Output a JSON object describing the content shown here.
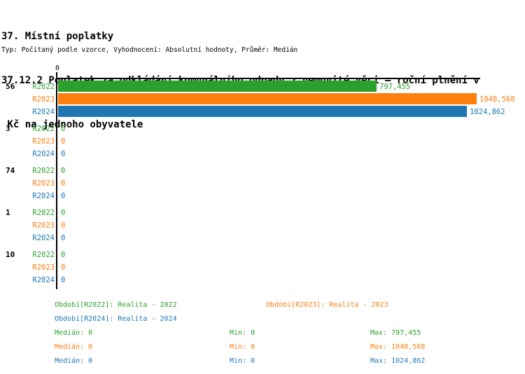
{
  "title": {
    "line1": "37. Místní poplatky",
    "line2": "37.12.2 Poplatek za odkládání komunálního odpadu z nemovité věci – roční plnění v",
    "line3": " Kč na jednoho obyvatele"
  },
  "subtitle": "Typ: Počítaný podle vzorce, Vyhodnocení: Absolutní hodnoty, Průměr: Medián",
  "chart_data": {
    "type": "bar",
    "orientation": "horizontal",
    "x_axis_tick": "0",
    "xlim": [
      0,
      1060
    ],
    "grid": false,
    "legend_position": "bottom",
    "categories": [
      "56",
      "3",
      "74",
      "1",
      "10"
    ],
    "series": [
      {
        "name": "R2022",
        "color": "#2ca02c",
        "values": [
          797.455,
          0,
          0,
          0,
          0
        ],
        "value_labels": [
          "797,455",
          "0",
          "0",
          "0",
          "0"
        ]
      },
      {
        "name": "R2023",
        "color": "#ff7f0e",
        "values": [
          1048.568,
          0,
          0,
          0,
          0
        ],
        "value_labels": [
          "1048,568",
          "0",
          "0",
          "0",
          "0"
        ]
      },
      {
        "name": "R2024",
        "color": "#1f77b4",
        "values": [
          1024.862,
          0,
          0,
          0,
          0
        ],
        "value_labels": [
          "1024,862",
          "0",
          "0",
          "0",
          "0"
        ]
      }
    ]
  },
  "legend": {
    "periods": [
      {
        "label": "Období[R2022]: Realita - 2022",
        "color": "#2ca02c"
      },
      {
        "label": "Období[R2023]: Realita - 2023",
        "color": "#ff7f0e"
      },
      {
        "label": "Období[R2024]: Realita - 2024",
        "color": "#1f77b4"
      }
    ],
    "stats": [
      {
        "median": "Medián: 0",
        "min": "Min: 0",
        "max": "Max: 797,455",
        "color": "#2ca02c"
      },
      {
        "median": "Medián: 0",
        "min": "Min: 0",
        "max": "Max: 1048,568",
        "color": "#ff7f0e"
      },
      {
        "median": "Medián: 0",
        "min": "Min: 0",
        "max": "Max: 1024,862",
        "color": "#1f77b4"
      }
    ]
  }
}
